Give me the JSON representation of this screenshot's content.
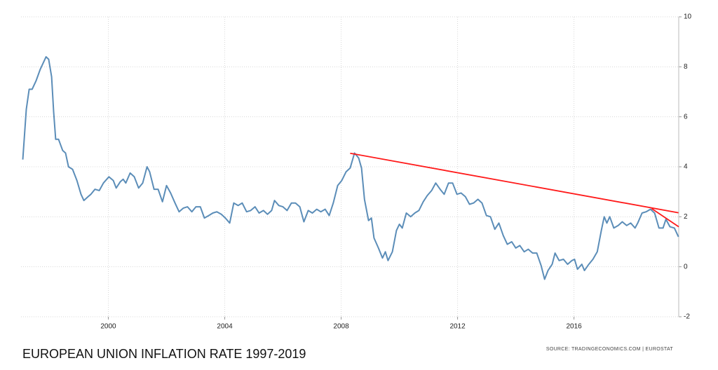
{
  "chart_data": {
    "type": "line",
    "title": "EUROPEAN UNION INFLATION RATE 1997-2019",
    "source": "SOURCE:  TRADINGECONOMICS.COM  |  EUROSTAT",
    "xlim": [
      1997,
      2019.6
    ],
    "xticks": [
      2000,
      2004,
      2008,
      2012,
      2016
    ],
    "ylim": [
      -2,
      10
    ],
    "yticks": [
      -2,
      0,
      2,
      4,
      6,
      8,
      10
    ],
    "grid": true,
    "series": [
      {
        "color": "#5b8db8",
        "x": [
          1997.06,
          1997.18,
          1997.28,
          1997.38,
          1997.52,
          1997.66,
          1997.86,
          1997.95,
          1998.05,
          1998.12,
          1998.19,
          1998.29,
          1998.43,
          1998.53,
          1998.63,
          1998.77,
          1998.92,
          1999.06,
          1999.16,
          1999.3,
          1999.4,
          1999.54,
          1999.69,
          1999.83,
          2000.02,
          2000.17,
          2000.27,
          2000.41,
          2000.51,
          2000.6,
          2000.75,
          2000.89,
          2001.04,
          2001.18,
          2001.33,
          2001.42,
          2001.57,
          2001.71,
          2001.86,
          2002.0,
          2002.14,
          2002.29,
          2002.43,
          2002.58,
          2002.72,
          2002.87,
          2003.01,
          2003.16,
          2003.3,
          2003.45,
          2003.59,
          2003.73,
          2003.88,
          2004.02,
          2004.17,
          2004.31,
          2004.46,
          2004.6,
          2004.75,
          2004.89,
          2005.04,
          2005.18,
          2005.33,
          2005.47,
          2005.61,
          2005.71,
          2005.86,
          2006.0,
          2006.14,
          2006.29,
          2006.43,
          2006.58,
          2006.72,
          2006.87,
          2007.01,
          2007.16,
          2007.3,
          2007.45,
          2007.59,
          2007.73,
          2007.88,
          2008.02,
          2008.17,
          2008.31,
          2008.46,
          2008.6,
          2008.7,
          2008.8,
          2008.94,
          2009.04,
          2009.13,
          2009.28,
          2009.42,
          2009.52,
          2009.61,
          2009.76,
          2009.9,
          2010.0,
          2010.1,
          2010.24,
          2010.39,
          2010.53,
          2010.67,
          2010.82,
          2010.96,
          2011.11,
          2011.25,
          2011.4,
          2011.54,
          2011.69,
          2011.83,
          2011.98,
          2012.12,
          2012.27,
          2012.41,
          2012.55,
          2012.7,
          2012.84,
          2012.99,
          2013.13,
          2013.28,
          2013.42,
          2013.57,
          2013.71,
          2013.86,
          2014.0,
          2014.14,
          2014.29,
          2014.43,
          2014.58,
          2014.72,
          2014.87,
          2014.99,
          2015.11,
          2015.25,
          2015.35,
          2015.49,
          2015.64,
          2015.78,
          2015.93,
          2016.02,
          2016.12,
          2016.27,
          2016.36,
          2016.51,
          2016.65,
          2016.8,
          2016.94,
          2017.04,
          2017.13,
          2017.23,
          2017.37,
          2017.52,
          2017.66,
          2017.81,
          2017.95,
          2018.1,
          2018.19,
          2018.34,
          2018.48,
          2018.63,
          2018.77,
          2018.92,
          2019.06,
          2019.16,
          2019.3,
          2019.45,
          2019.59
        ],
        "values": [
          4.29,
          6.3,
          7.1,
          7.1,
          7.45,
          7.9,
          8.4,
          8.3,
          7.6,
          6.2,
          5.1,
          5.1,
          4.65,
          4.55,
          4.0,
          3.9,
          3.45,
          2.9,
          2.65,
          2.8,
          2.9,
          3.1,
          3.05,
          3.35,
          3.6,
          3.45,
          3.15,
          3.4,
          3.5,
          3.35,
          3.75,
          3.6,
          3.15,
          3.35,
          4.0,
          3.8,
          3.1,
          3.1,
          2.6,
          3.25,
          2.95,
          2.55,
          2.2,
          2.35,
          2.4,
          2.2,
          2.4,
          2.4,
          1.95,
          2.05,
          2.15,
          2.2,
          2.1,
          1.95,
          1.75,
          2.55,
          2.45,
          2.55,
          2.2,
          2.25,
          2.4,
          2.15,
          2.25,
          2.1,
          2.25,
          2.65,
          2.45,
          2.4,
          2.25,
          2.55,
          2.55,
          2.4,
          1.8,
          2.25,
          2.15,
          2.3,
          2.2,
          2.3,
          2.05,
          2.55,
          3.25,
          3.45,
          3.8,
          3.95,
          4.55,
          4.35,
          3.95,
          2.7,
          1.85,
          1.95,
          1.15,
          0.75,
          0.35,
          0.6,
          0.25,
          0.6,
          1.45,
          1.7,
          1.55,
          2.15,
          2.0,
          2.15,
          2.25,
          2.6,
          2.85,
          3.05,
          3.35,
          3.1,
          2.9,
          3.35,
          3.35,
          2.9,
          2.95,
          2.8,
          2.5,
          2.55,
          2.7,
          2.55,
          2.05,
          2.0,
          1.5,
          1.75,
          1.25,
          0.9,
          1.0,
          0.75,
          0.85,
          0.6,
          0.7,
          0.55,
          0.55,
          0.05,
          -0.5,
          -0.15,
          0.1,
          0.55,
          0.25,
          0.3,
          0.1,
          0.25,
          0.3,
          -0.1,
          0.1,
          -0.15,
          0.1,
          0.3,
          0.6,
          1.45,
          2.0,
          1.75,
          2.0,
          1.55,
          1.65,
          1.8,
          1.65,
          1.75,
          1.55,
          1.75,
          2.15,
          2.2,
          2.3,
          2.15,
          1.55,
          1.55,
          1.9,
          1.6,
          1.55,
          1.2
        ]
      },
      {
        "color": "#ff1a1a",
        "x": [
          2008.31,
          2019.59
        ],
        "values": [
          4.54,
          2.16
        ]
      },
      {
        "color": "#ff1a1a",
        "x": [
          2018.67,
          2019.6
        ],
        "values": [
          2.33,
          1.6
        ]
      }
    ]
  }
}
